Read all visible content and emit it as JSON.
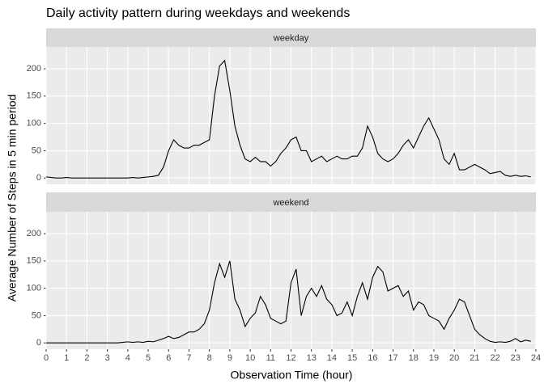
{
  "chart_data": {
    "type": "line",
    "title": "Daily activity pattern during weekdays and weekends",
    "xlabel": "Observation Time (hour)",
    "ylabel": "Average Number of Steps in 5 min period",
    "facet": true,
    "grid": true,
    "xlim": [
      0,
      24
    ],
    "xticks": [
      0,
      1,
      2,
      3,
      4,
      5,
      6,
      7,
      8,
      9,
      10,
      11,
      12,
      13,
      14,
      15,
      16,
      17,
      18,
      19,
      20,
      21,
      22,
      23,
      24
    ],
    "ylim": [
      -11.5,
      240
    ],
    "yticks": [
      0,
      50,
      100,
      150,
      200
    ],
    "x": [
      0,
      0.25,
      0.5,
      0.75,
      1,
      1.25,
      1.5,
      1.75,
      2,
      2.25,
      2.5,
      2.75,
      3,
      3.25,
      3.5,
      3.75,
      4,
      4.25,
      4.5,
      4.75,
      5,
      5.25,
      5.5,
      5.75,
      6,
      6.25,
      6.5,
      6.75,
      7,
      7.25,
      7.5,
      7.75,
      8,
      8.25,
      8.5,
      8.75,
      9,
      9.25,
      9.5,
      9.75,
      10,
      10.25,
      10.5,
      10.75,
      11,
      11.25,
      11.5,
      11.75,
      12,
      12.25,
      12.5,
      12.75,
      13,
      13.25,
      13.5,
      13.75,
      14,
      14.25,
      14.5,
      14.75,
      15,
      15.25,
      15.5,
      15.75,
      16,
      16.25,
      16.5,
      16.75,
      17,
      17.25,
      17.5,
      17.75,
      18,
      18.25,
      18.5,
      18.75,
      19,
      19.25,
      19.5,
      19.75,
      20,
      20.25,
      20.5,
      20.75,
      21,
      21.25,
      21.5,
      21.75,
      22,
      22.25,
      22.5,
      22.75,
      23,
      23.25,
      23.5,
      23.75
    ],
    "series": [
      {
        "name": "weekday",
        "color": "#000000",
        "values": [
          2,
          1,
          0,
          0,
          1,
          0,
          0,
          0,
          0,
          0,
          0,
          0,
          0,
          0,
          0,
          0,
          0,
          1,
          0,
          1,
          2,
          3,
          5,
          20,
          50,
          70,
          60,
          55,
          55,
          60,
          60,
          65,
          70,
          150,
          205,
          215,
          160,
          95,
          60,
          35,
          30,
          38,
          30,
          30,
          22,
          30,
          45,
          55,
          70,
          75,
          50,
          50,
          30,
          35,
          40,
          30,
          35,
          40,
          35,
          35,
          40,
          40,
          55,
          95,
          75,
          45,
          35,
          30,
          35,
          45,
          60,
          70,
          55,
          75,
          95,
          110,
          90,
          70,
          35,
          25,
          45,
          15,
          15,
          20,
          25,
          20,
          15,
          8,
          10,
          12,
          5,
          3,
          5,
          3,
          4,
          2
        ]
      },
      {
        "name": "weekend",
        "color": "#000000",
        "values": [
          0,
          0,
          0,
          0,
          0,
          0,
          0,
          0,
          0,
          0,
          0,
          0,
          0,
          0,
          0,
          1,
          2,
          1,
          2,
          1,
          3,
          2,
          5,
          8,
          12,
          8,
          10,
          15,
          20,
          20,
          25,
          35,
          60,
          110,
          145,
          120,
          150,
          80,
          60,
          30,
          45,
          55,
          85,
          70,
          45,
          40,
          35,
          40,
          110,
          135,
          50,
          85,
          100,
          85,
          105,
          80,
          70,
          50,
          55,
          75,
          50,
          85,
          110,
          80,
          120,
          140,
          130,
          95,
          100,
          105,
          85,
          95,
          60,
          75,
          70,
          50,
          45,
          40,
          25,
          45,
          60,
          80,
          75,
          50,
          25,
          15,
          8,
          3,
          1,
          2,
          1,
          3,
          8,
          2,
          5,
          3
        ]
      }
    ]
  }
}
